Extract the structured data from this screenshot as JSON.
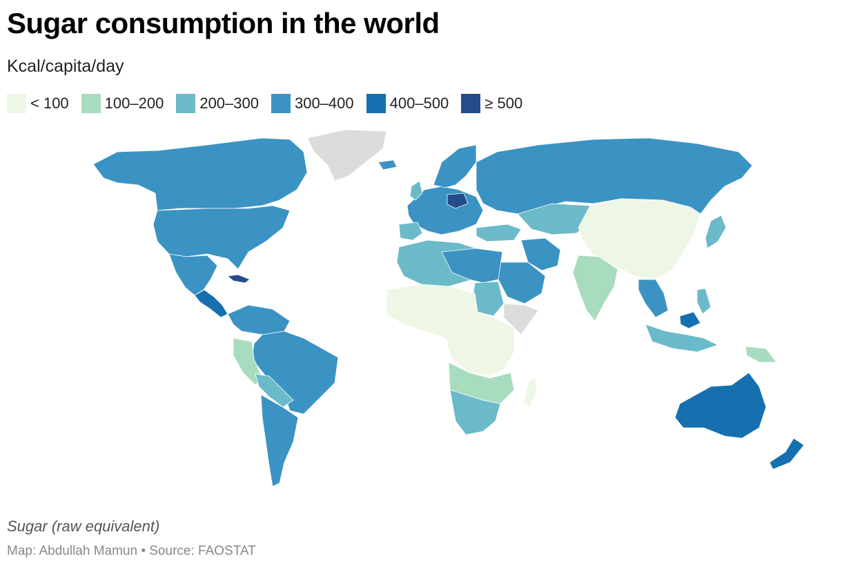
{
  "header": {
    "title": "Sugar consumption in the world",
    "subtitle": "Kcal/capita/day"
  },
  "legend": {
    "items": [
      {
        "label": "< 100",
        "color": "#eef7e6"
      },
      {
        "label": "100–200",
        "color": "#a8dcbe"
      },
      {
        "label": "200–300",
        "color": "#6bbac9"
      },
      {
        "label": "300–400",
        "color": "#3b93c3"
      },
      {
        "label": "400–500",
        "color": "#1670b0"
      },
      {
        "label": "≥ 500",
        "color": "#264b8d"
      }
    ],
    "no_data_color": "#dcdcdc"
  },
  "footer": {
    "note": "Sugar (raw equivalent)",
    "source": "Map: Abdullah Mamun • Source: FAOSTAT"
  }
}
